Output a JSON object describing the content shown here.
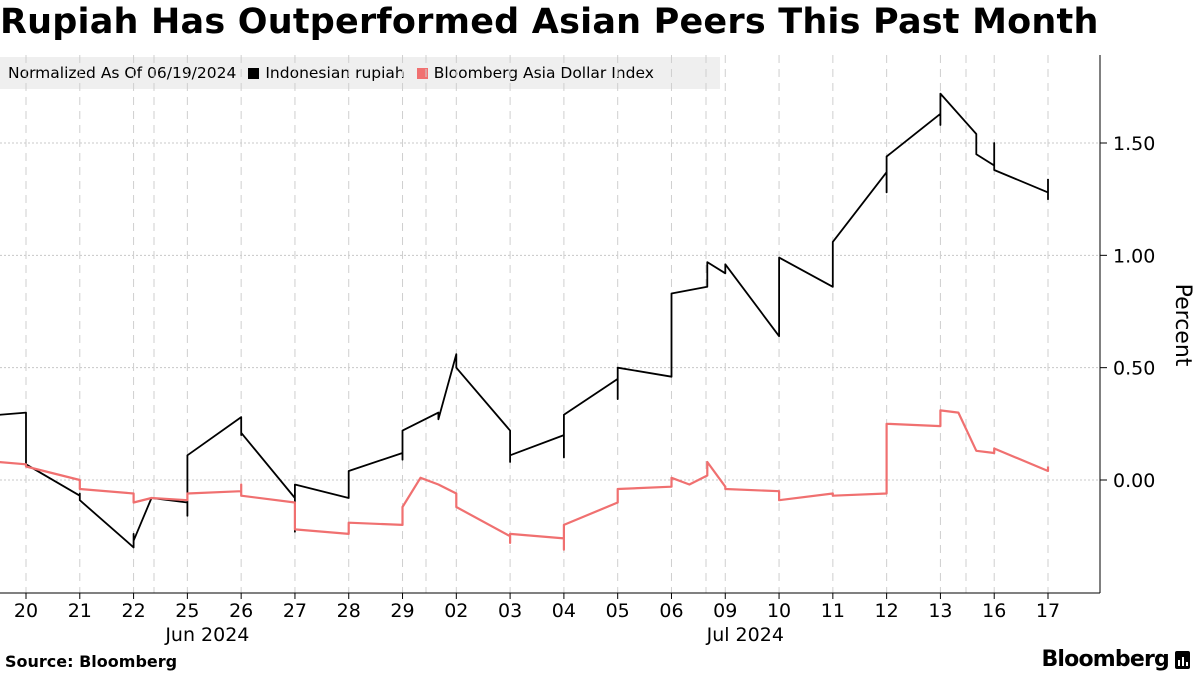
{
  "header": {
    "title": "Rupiah Has Outperformed Asian Peers This Past Month"
  },
  "legend": {
    "note": "Normalized As Of 06/19/2024",
    "items": [
      {
        "label": "Indonesian rupiah",
        "color": "#000000"
      },
      {
        "label": "Bloomberg Asia Dollar Index",
        "color": "#f07070"
      }
    ]
  },
  "footer": {
    "source": "Source: Bloomberg",
    "brand": "Bloomberg",
    "brand_icon": "bloomberg-terminal-icon"
  },
  "chart_data": {
    "type": "line",
    "ylabel": "Percent",
    "ylim": [
      -0.5,
      1.9
    ],
    "yticks": [
      0.0,
      0.5,
      1.0,
      1.5
    ],
    "ytick_labels": [
      "0.00",
      "0.50",
      "1.00",
      "1.50"
    ],
    "grid": true,
    "legend_position": "top-left",
    "day_ticks": [
      {
        "label": "20",
        "date": "2024-06-20"
      },
      {
        "label": "21",
        "date": "2024-06-21"
      },
      {
        "label": "22",
        "date": "2024-06-22"
      },
      {
        "label": "25",
        "date": "2024-06-25"
      },
      {
        "label": "26",
        "date": "2024-06-26"
      },
      {
        "label": "27",
        "date": "2024-06-27"
      },
      {
        "label": "28",
        "date": "2024-06-28"
      },
      {
        "label": "29",
        "date": "2024-06-29"
      },
      {
        "label": "02",
        "date": "2024-07-02"
      },
      {
        "label": "03",
        "date": "2024-07-03"
      },
      {
        "label": "04",
        "date": "2024-07-04"
      },
      {
        "label": "05",
        "date": "2024-07-05"
      },
      {
        "label": "06",
        "date": "2024-07-06"
      },
      {
        "label": "09",
        "date": "2024-07-09"
      },
      {
        "label": "10",
        "date": "2024-07-10"
      },
      {
        "label": "11",
        "date": "2024-07-11"
      },
      {
        "label": "12",
        "date": "2024-07-12"
      },
      {
        "label": "13",
        "date": "2024-07-13"
      },
      {
        "label": "16",
        "date": "2024-07-16"
      },
      {
        "label": "17",
        "date": "2024-07-17"
      }
    ],
    "month_labels": [
      {
        "label": "Jun 2024",
        "date": "2024-06-25"
      },
      {
        "label": "Jul 2024",
        "date": "2024-07-09"
      }
    ],
    "series": [
      {
        "name": "Indonesian rupiah",
        "color": "#000000",
        "points": [
          [
            "2024-06-19",
            0.2
          ],
          [
            "2024-06-19",
            0.33
          ],
          [
            "2024-06-19",
            0.35
          ],
          [
            "2024-06-19",
            0.28
          ],
          [
            "2024-06-20",
            0.3
          ],
          [
            "2024-06-20",
            0.07
          ],
          [
            "2024-06-21",
            -0.07
          ],
          [
            "2024-06-21",
            -0.06
          ],
          [
            "2024-06-21",
            -0.09
          ],
          [
            "2024-06-22",
            -0.3
          ],
          [
            "2024-06-22",
            -0.24
          ],
          [
            "2024-06-22",
            -0.27
          ],
          [
            "2024-06-23",
            -0.08
          ],
          [
            "2024-06-25",
            -0.1
          ],
          [
            "2024-06-25",
            -0.16
          ],
          [
            "2024-06-25",
            -0.15
          ],
          [
            "2024-06-25",
            0.05
          ],
          [
            "2024-06-25",
            0.11
          ],
          [
            "2024-06-26",
            0.28
          ],
          [
            "2024-06-26",
            0.23
          ],
          [
            "2024-06-26",
            0.2
          ],
          [
            "2024-06-26",
            0.21
          ],
          [
            "2024-06-27",
            -0.08
          ],
          [
            "2024-06-27",
            -0.23
          ],
          [
            "2024-06-27",
            -0.05
          ],
          [
            "2024-06-27",
            -0.02
          ],
          [
            "2024-06-28",
            -0.08
          ],
          [
            "2024-06-28",
            -0.06
          ],
          [
            "2024-06-28",
            0.04
          ],
          [
            "2024-06-29",
            0.12
          ],
          [
            "2024-06-29",
            0.09
          ],
          [
            "2024-06-29",
            0.22
          ],
          [
            "2024-07-01",
            0.3
          ],
          [
            "2024-07-01",
            0.27
          ],
          [
            "2024-07-02",
            0.56
          ],
          [
            "2024-07-02",
            0.5
          ],
          [
            "2024-07-03",
            0.22
          ],
          [
            "2024-07-03",
            0.19
          ],
          [
            "2024-07-03",
            0.08
          ],
          [
            "2024-07-03",
            0.11
          ],
          [
            "2024-07-04",
            0.2
          ],
          [
            "2024-07-04",
            0.1
          ],
          [
            "2024-07-04",
            0.24
          ],
          [
            "2024-07-04",
            0.29
          ],
          [
            "2024-07-05",
            0.45
          ],
          [
            "2024-07-05",
            0.36
          ],
          [
            "2024-07-05",
            0.41
          ],
          [
            "2024-07-05",
            0.5
          ],
          [
            "2024-07-06",
            0.46
          ],
          [
            "2024-07-06",
            0.63
          ],
          [
            "2024-07-06",
            0.83
          ],
          [
            "2024-07-08",
            0.86
          ],
          [
            "2024-07-08",
            0.97
          ],
          [
            "2024-07-09",
            0.92
          ],
          [
            "2024-07-09",
            0.96
          ],
          [
            "2024-07-10",
            0.64
          ],
          [
            "2024-07-10",
            0.85
          ],
          [
            "2024-07-10",
            0.77
          ],
          [
            "2024-07-10",
            0.99
          ],
          [
            "2024-07-11",
            0.86
          ],
          [
            "2024-07-11",
            0.98
          ],
          [
            "2024-07-11",
            1.06
          ],
          [
            "2024-07-12",
            1.37
          ],
          [
            "2024-07-12",
            1.28
          ],
          [
            "2024-07-12",
            1.35
          ],
          [
            "2024-07-12",
            1.44
          ],
          [
            "2024-07-13",
            1.63
          ],
          [
            "2024-07-13",
            1.58
          ],
          [
            "2024-07-13",
            1.72
          ],
          [
            "2024-07-15",
            1.54
          ],
          [
            "2024-07-15",
            1.45
          ],
          [
            "2024-07-16",
            1.4
          ],
          [
            "2024-07-16",
            1.5
          ],
          [
            "2024-07-16",
            1.38
          ],
          [
            "2024-07-17",
            1.28
          ],
          [
            "2024-07-17",
            1.25
          ],
          [
            "2024-07-17",
            1.34
          ]
        ]
      },
      {
        "name": "Bloomberg Asia Dollar Index",
        "color": "#f07070",
        "points": [
          [
            "2024-06-19",
            0.07
          ],
          [
            "2024-06-19",
            0.09
          ],
          [
            "2024-06-20",
            0.07
          ],
          [
            "2024-06-20",
            0.06
          ],
          [
            "2024-06-21",
            0.0
          ],
          [
            "2024-06-21",
            -0.04
          ],
          [
            "2024-06-22",
            -0.06
          ],
          [
            "2024-06-22",
            -0.1
          ],
          [
            "2024-06-23",
            -0.08
          ],
          [
            "2024-06-25",
            -0.09
          ],
          [
            "2024-06-25",
            -0.06
          ],
          [
            "2024-06-26",
            -0.05
          ],
          [
            "2024-06-26",
            -0.02
          ],
          [
            "2024-06-26",
            -0.07
          ],
          [
            "2024-06-27",
            -0.1
          ],
          [
            "2024-06-27",
            -0.18
          ],
          [
            "2024-06-27",
            -0.22
          ],
          [
            "2024-06-28",
            -0.24
          ],
          [
            "2024-06-28",
            -0.19
          ],
          [
            "2024-06-29",
            -0.2
          ],
          [
            "2024-06-29",
            -0.12
          ],
          [
            "2024-06-30",
            0.01
          ],
          [
            "2024-07-01",
            -0.02
          ],
          [
            "2024-07-02",
            -0.06
          ],
          [
            "2024-07-02",
            -0.12
          ],
          [
            "2024-07-03",
            -0.25
          ],
          [
            "2024-07-03",
            -0.28
          ],
          [
            "2024-07-03",
            -0.24
          ],
          [
            "2024-07-04",
            -0.26
          ],
          [
            "2024-07-04",
            -0.31
          ],
          [
            "2024-07-04",
            -0.2
          ],
          [
            "2024-07-05",
            -0.1
          ],
          [
            "2024-07-05",
            -0.04
          ],
          [
            "2024-07-06",
            -0.03
          ],
          [
            "2024-07-06",
            0.01
          ],
          [
            "2024-07-07",
            -0.02
          ],
          [
            "2024-07-08",
            0.02
          ],
          [
            "2024-07-08",
            0.08
          ],
          [
            "2024-07-09",
            -0.03
          ],
          [
            "2024-07-09",
            -0.04
          ],
          [
            "2024-07-10",
            -0.05
          ],
          [
            "2024-07-10",
            -0.09
          ],
          [
            "2024-07-11",
            -0.06
          ],
          [
            "2024-07-11",
            -0.07
          ],
          [
            "2024-07-12",
            -0.06
          ],
          [
            "2024-07-12",
            0.08
          ],
          [
            "2024-07-12",
            0.25
          ],
          [
            "2024-07-13",
            0.24
          ],
          [
            "2024-07-13",
            0.31
          ],
          [
            "2024-07-14",
            0.3
          ],
          [
            "2024-07-15",
            0.13
          ],
          [
            "2024-07-16",
            0.12
          ],
          [
            "2024-07-16",
            0.14
          ],
          [
            "2024-07-17",
            0.04
          ],
          [
            "2024-07-17",
            0.06
          ]
        ]
      }
    ]
  }
}
